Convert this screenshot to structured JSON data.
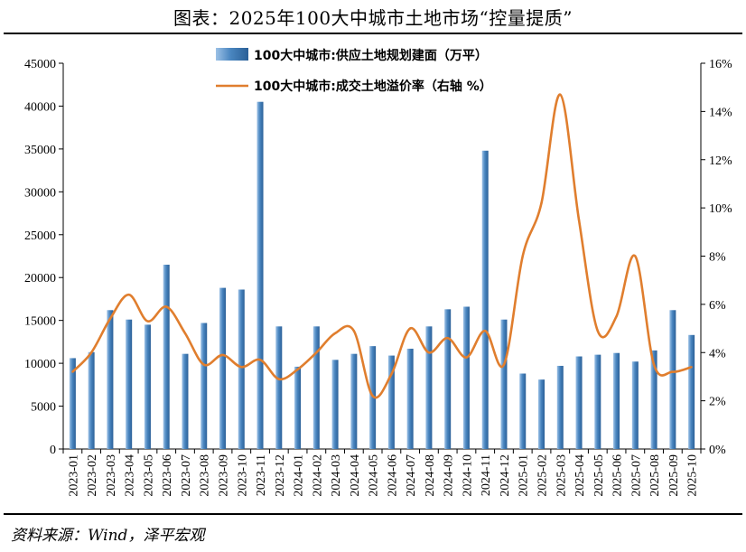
{
  "title": "图表：2025年100大中城市土地市场“控量提质”",
  "source": "资料来源：Wind，泽平宏观",
  "chart_data": {
    "type": "bar",
    "categories": [
      "2023-01",
      "2023-02",
      "2023-03",
      "2023-04",
      "2023-05",
      "2023-06",
      "2023-07",
      "2023-08",
      "2023-09",
      "2023-10",
      "2023-11",
      "2023-12",
      "2024-01",
      "2024-02",
      "2024-03",
      "2024-04",
      "2024-05",
      "2024-06",
      "2024-07",
      "2024-08",
      "2024-09",
      "2024-10",
      "2024-11",
      "2024-12",
      "2025-01",
      "2025-02",
      "2025-03",
      "2025-04",
      "2025-05",
      "2025-06",
      "2025-07",
      "2025-08",
      "2025-09",
      "2025-10"
    ],
    "series": [
      {
        "name": "100大中城市:供应土地规划建面（万平）",
        "type": "bar",
        "axis": "left",
        "color": "#4a86c0",
        "values": [
          10600,
          11300,
          16200,
          15100,
          14500,
          21500,
          11100,
          14700,
          18800,
          18600,
          40500,
          14300,
          9600,
          14300,
          10400,
          11100,
          12000,
          10900,
          11700,
          14300,
          16300,
          16600,
          34800,
          15100,
          8800,
          8100,
          9700,
          10800,
          11000,
          11200,
          10200,
          11500,
          16200,
          13300
        ]
      },
      {
        "name": "100大中城市:成交土地溢价率（右轴 %）",
        "type": "line",
        "axis": "right",
        "color": "#e07e2e",
        "values": [
          3.2,
          4.0,
          5.4,
          6.4,
          5.3,
          5.9,
          4.8,
          3.5,
          3.9,
          3.4,
          3.7,
          2.9,
          3.3,
          4.0,
          4.8,
          4.9,
          2.2,
          3.1,
          5.0,
          4.0,
          4.6,
          3.8,
          4.9,
          3.5,
          8.0,
          10.2,
          14.7,
          9.5,
          4.9,
          5.5,
          8.0,
          3.5,
          3.2,
          3.4
        ]
      }
    ],
    "ylim": [
      0,
      45000
    ],
    "yticks": [
      "0",
      "5000",
      "10000",
      "15000",
      "20000",
      "25000",
      "30000",
      "35000",
      "40000",
      "45000"
    ],
    "y2lim": [
      0,
      16
    ],
    "y2ticks": [
      "0%",
      "2%",
      "4%",
      "6%",
      "8%",
      "10%",
      "12%",
      "14%",
      "16%"
    ],
    "legend_position": "top",
    "grid": false
  }
}
